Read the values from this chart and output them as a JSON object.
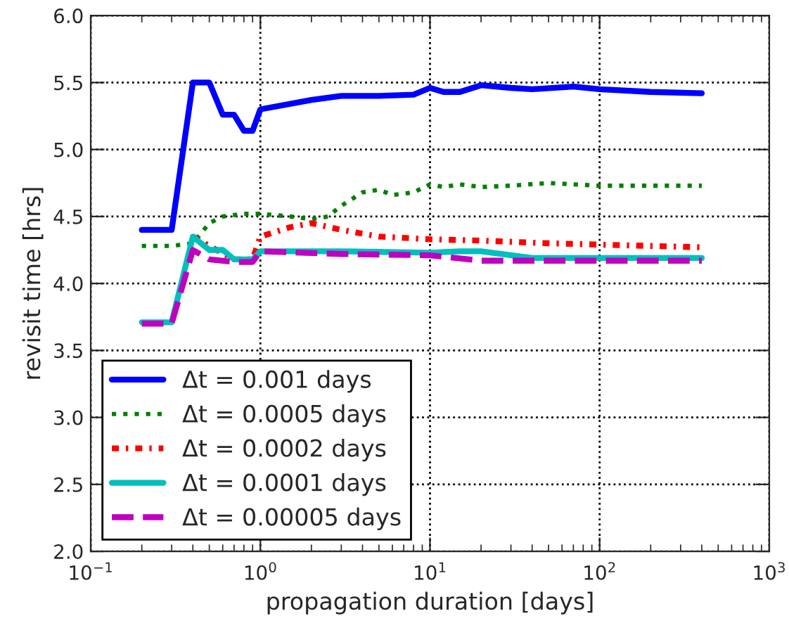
{
  "chart_data": {
    "type": "line",
    "xlabel": "propagation duration [days]",
    "ylabel": "revisit time [hrs]",
    "log": "x",
    "xlim": [
      0.1,
      1000
    ],
    "xticks": [
      {
        "value": 0.1,
        "label": "10$^{−1}$"
      },
      {
        "value": 1,
        "label": "10$^{0}$"
      },
      {
        "value": 10,
        "label": "10$^{1}$"
      },
      {
        "value": 100,
        "label": "10$^{2}$"
      },
      {
        "value": 1000,
        "label": "10$^{3}$"
      }
    ],
    "ylim": [
      2.0,
      6.0
    ],
    "yticks": [
      {
        "value": 2.0,
        "label": "2.0"
      },
      {
        "value": 2.5,
        "label": "2.5"
      },
      {
        "value": 3.0,
        "label": "3.0"
      },
      {
        "value": 3.5,
        "label": "3.5"
      },
      {
        "value": 4.0,
        "label": "4.0"
      },
      {
        "value": 4.5,
        "label": "4.5"
      },
      {
        "value": 5.0,
        "label": "5.0"
      },
      {
        "value": 5.5,
        "label": "5.5"
      },
      {
        "value": 6.0,
        "label": "6.0"
      }
    ],
    "grid": true,
    "legend": "bottom left",
    "marker": "none",
    "series": [
      {
        "name": "Δt = 0.001 days",
        "color": "#0000ff",
        "line_style": "solid",
        "x": [
          0.2,
          0.3,
          0.4,
          0.5,
          0.6,
          0.7,
          0.8,
          0.9,
          1.0,
          2,
          3,
          5,
          8,
          10,
          12,
          15,
          20,
          30,
          40,
          70,
          100,
          200,
          400
        ],
        "values": [
          4.4,
          4.4,
          5.5,
          5.5,
          5.26,
          5.26,
          5.14,
          5.14,
          5.3,
          5.37,
          5.4,
          5.4,
          5.41,
          5.46,
          5.43,
          5.43,
          5.48,
          5.46,
          5.45,
          5.47,
          5.45,
          5.43,
          5.42
        ]
      },
      {
        "name": "Δt = 0.0005 days",
        "color": "#008000",
        "line_style": "dotted",
        "x": [
          0.2,
          0.3,
          0.4,
          0.5,
          0.6,
          0.8,
          1.0,
          1.5,
          2,
          2.5,
          3,
          4,
          5,
          6,
          8,
          10,
          12,
          15,
          20,
          30,
          50,
          70,
          100,
          400
        ],
        "values": [
          4.28,
          4.28,
          4.3,
          4.45,
          4.5,
          4.52,
          4.52,
          4.5,
          4.48,
          4.5,
          4.58,
          4.68,
          4.7,
          4.66,
          4.68,
          4.74,
          4.72,
          4.74,
          4.72,
          4.73,
          4.75,
          4.74,
          4.73,
          4.73
        ]
      },
      {
        "name": "Δt = 0.0002 days",
        "color": "#ff0000",
        "line_style": "dashdot",
        "x": [
          0.4,
          0.5,
          0.7,
          0.9,
          1.0,
          1.5,
          2,
          3,
          5,
          10,
          20,
          50,
          100,
          400
        ],
        "values": [
          4.35,
          4.28,
          4.18,
          4.18,
          4.35,
          4.42,
          4.45,
          4.4,
          4.35,
          4.33,
          4.32,
          4.3,
          4.29,
          4.27
        ]
      },
      {
        "name": "Δt = 0.0001 days",
        "color": "#00bfbf",
        "line_style": "solid",
        "x": [
          0.2,
          0.3,
          0.4,
          0.5,
          0.6,
          0.7,
          0.9,
          1.0,
          3,
          10,
          15,
          20,
          40,
          100,
          400
        ],
        "values": [
          3.71,
          3.71,
          4.35,
          4.25,
          4.25,
          4.18,
          4.18,
          4.24,
          4.24,
          4.23,
          4.24,
          4.24,
          4.19,
          4.19,
          4.19
        ]
      },
      {
        "name": "Δt = 0.00005 days",
        "color": "#bf00bf",
        "line_style": "dashed",
        "x": [
          0.2,
          0.3,
          0.4,
          0.5,
          0.7,
          0.9,
          1.0,
          3,
          10,
          20,
          100,
          400
        ],
        "values": [
          3.7,
          3.7,
          4.25,
          4.18,
          4.16,
          4.16,
          4.24,
          4.22,
          4.21,
          4.17,
          4.17,
          4.17
        ]
      }
    ]
  }
}
